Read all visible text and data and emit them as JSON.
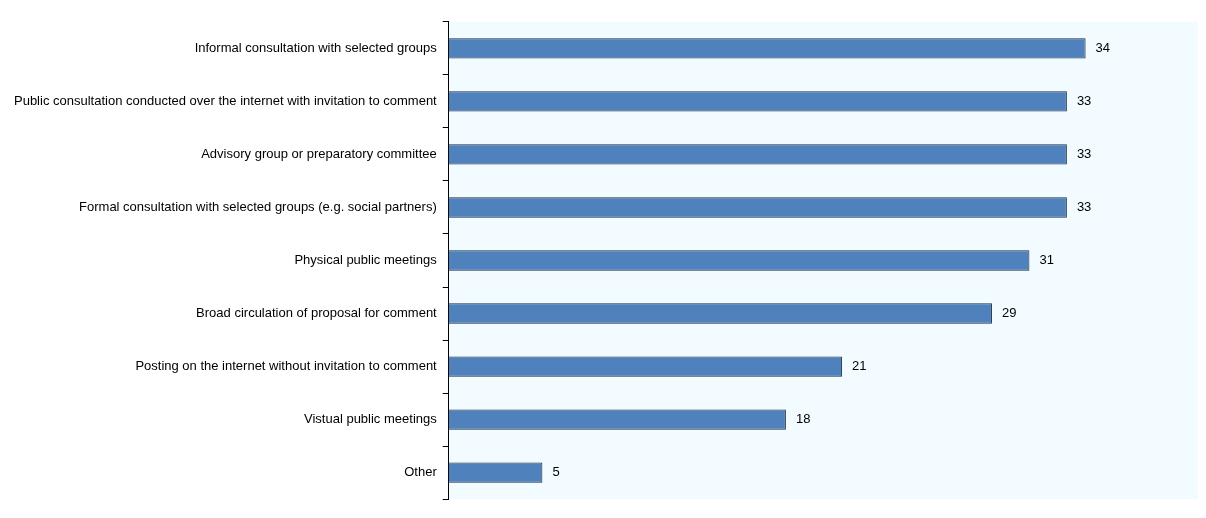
{
  "chart_data": {
    "type": "bar",
    "orientation": "horizontal",
    "categories": [
      "Informal consultation with selected groups",
      "Public consultation conducted over the internet with invitation to comment",
      "Advisory group or preparatory committee",
      "Formal consultation with selected groups (e.g. social partners)",
      "Physical public meetings",
      "Broad circulation of proposal for comment",
      "Posting on the internet without invitation to comment",
      "Vistual public meetings",
      "Other"
    ],
    "values": [
      34,
      33,
      33,
      33,
      31,
      29,
      21,
      18,
      5
    ],
    "color": "#4f81bd",
    "xlim": [
      0,
      40
    ],
    "tick_labels": "y",
    "data_labels": true,
    "grid": false,
    "legend": false
  }
}
